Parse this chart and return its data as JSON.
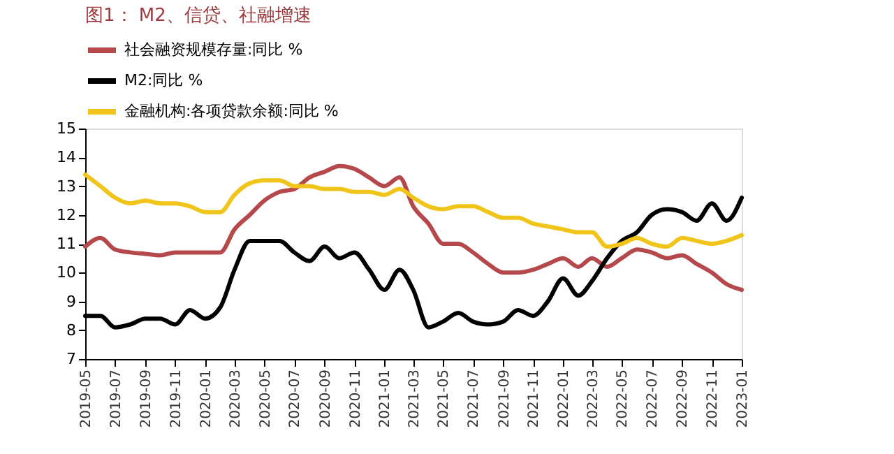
{
  "chart_data": {
    "type": "line",
    "title": "图1： M2、信贷、社融增速",
    "x": [
      "2019-05",
      "2019-06",
      "2019-07",
      "2019-08",
      "2019-09",
      "2019-10",
      "2019-11",
      "2019-12",
      "2020-01",
      "2020-02",
      "2020-03",
      "2020-04",
      "2020-05",
      "2020-06",
      "2020-07",
      "2020-08",
      "2020-09",
      "2020-10",
      "2020-11",
      "2020-12",
      "2021-01",
      "2021-02",
      "2021-03",
      "2021-04",
      "2021-05",
      "2021-06",
      "2021-07",
      "2021-08",
      "2021-09",
      "2021-10",
      "2021-11",
      "2021-12",
      "2022-01",
      "2022-02",
      "2022-03",
      "2022-04",
      "2022-05",
      "2022-06",
      "2022-07",
      "2022-08",
      "2022-09",
      "2022-10",
      "2022-11",
      "2022-12",
      "2023-01"
    ],
    "series": [
      {
        "name": "社会融资规模存量:同比 %",
        "color": "#b5484b",
        "values": [
          10.9,
          11.2,
          10.8,
          10.7,
          10.65,
          10.6,
          10.7,
          10.7,
          10.7,
          10.7,
          11.5,
          12.0,
          12.5,
          12.8,
          12.9,
          13.3,
          13.5,
          13.7,
          13.6,
          13.3,
          13.0,
          13.3,
          12.3,
          11.7,
          11.0,
          11.0,
          10.7,
          10.3,
          10.0,
          10.0,
          10.1,
          10.3,
          10.5,
          10.2,
          10.5,
          10.2,
          10.5,
          10.8,
          10.7,
          10.5,
          10.6,
          10.3,
          10.0,
          9.6,
          9.4
        ]
      },
      {
        "name": "M2:同比 %",
        "color": "#000000",
        "values": [
          8.5,
          8.5,
          8.1,
          8.2,
          8.4,
          8.4,
          8.2,
          8.7,
          8.4,
          8.8,
          10.1,
          11.1,
          11.1,
          11.1,
          10.7,
          10.4,
          10.9,
          10.5,
          10.7,
          10.1,
          9.4,
          10.1,
          9.4,
          8.1,
          8.3,
          8.6,
          8.3,
          8.2,
          8.3,
          8.7,
          8.5,
          9.0,
          9.8,
          9.2,
          9.7,
          10.5,
          11.1,
          11.4,
          12.0,
          12.2,
          12.1,
          11.8,
          12.4,
          11.8,
          12.6
        ]
      },
      {
        "name": "金融机构:各项贷款余额:同比 %",
        "color": "#f0c419",
        "values": [
          13.4,
          13.0,
          12.6,
          12.4,
          12.5,
          12.4,
          12.4,
          12.3,
          12.1,
          12.1,
          12.7,
          13.1,
          13.2,
          13.2,
          13.0,
          13.0,
          12.9,
          12.9,
          12.8,
          12.8,
          12.7,
          12.9,
          12.6,
          12.3,
          12.2,
          12.3,
          12.3,
          12.1,
          11.9,
          11.9,
          11.7,
          11.6,
          11.5,
          11.4,
          11.4,
          10.9,
          11.0,
          11.2,
          11.0,
          10.9,
          11.2,
          11.1,
          11.0,
          11.1,
          11.3
        ]
      }
    ],
    "xlim": [
      "2019-05",
      "2023-01"
    ],
    "xticks": [
      "2019-05",
      "2019-07",
      "2019-09",
      "2019-11",
      "2020-01",
      "2020-03",
      "2020-05",
      "2020-07",
      "2020-09",
      "2020-11",
      "2021-01",
      "2021-03",
      "2021-05",
      "2021-07",
      "2021-09",
      "2021-11",
      "2022-01",
      "2022-03",
      "2022-05",
      "2022-07",
      "2022-09",
      "2022-11",
      "2023-01"
    ],
    "ylim": [
      7,
      15
    ],
    "yticks": [
      7,
      8,
      9,
      10,
      11,
      12,
      13,
      14,
      15
    ],
    "grid": false,
    "legend": "top",
    "marker": "none",
    "line_style": "solid"
  }
}
